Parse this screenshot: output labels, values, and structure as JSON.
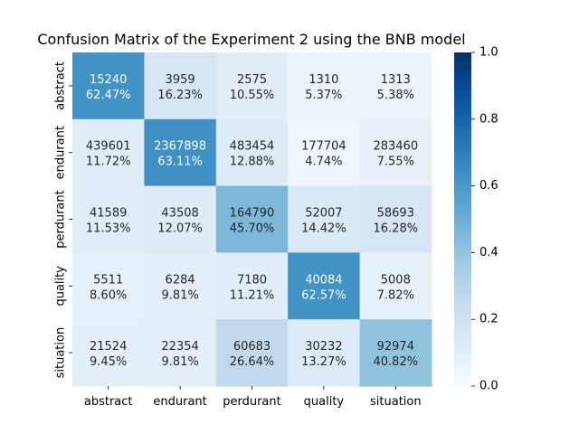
{
  "chart_data": {
    "type": "heatmap",
    "title": "Confusion Matrix of the Experiment 2 using the BNB model",
    "row_labels": [
      "abstract",
      "endurant",
      "perdurant",
      "quality",
      "situation"
    ],
    "col_labels": [
      "abstract",
      "endurant",
      "perdurant",
      "quality",
      "situation"
    ],
    "counts": [
      [
        15240,
        3959,
        2575,
        1310,
        1313
      ],
      [
        439601,
        2367898,
        483454,
        177704,
        283460
      ],
      [
        41589,
        43508,
        164790,
        52007,
        58693
      ],
      [
        5511,
        6284,
        7180,
        40084,
        5008
      ],
      [
        21524,
        22354,
        60683,
        30232,
        92974
      ]
    ],
    "percentages": [
      [
        "62.47%",
        "16.23%",
        "10.55%",
        "5.37%",
        "5.38%"
      ],
      [
        "11.72%",
        "63.11%",
        "12.88%",
        "4.74%",
        "7.55%"
      ],
      [
        "11.53%",
        "12.07%",
        "45.70%",
        "14.42%",
        "16.28%"
      ],
      [
        "8.60%",
        "9.81%",
        "11.21%",
        "62.57%",
        "7.82%"
      ],
      [
        "9.45%",
        "9.81%",
        "26.64%",
        "13.27%",
        "40.82%"
      ]
    ],
    "normalized": [
      [
        0.6247,
        0.1623,
        0.1055,
        0.0537,
        0.0538
      ],
      [
        0.1172,
        0.6311,
        0.1288,
        0.0474,
        0.0755
      ],
      [
        0.1153,
        0.1207,
        0.457,
        0.1442,
        0.1628
      ],
      [
        0.086,
        0.0981,
        0.1121,
        0.6257,
        0.0782
      ],
      [
        0.0945,
        0.0981,
        0.2664,
        0.1327,
        0.4082
      ]
    ],
    "colorbar": {
      "colormap": "Blues",
      "vmin": 0.0,
      "vmax": 1.0,
      "ticks": [
        "0.0",
        "0.2",
        "0.4",
        "0.6",
        "0.8",
        "1.0"
      ]
    }
  }
}
